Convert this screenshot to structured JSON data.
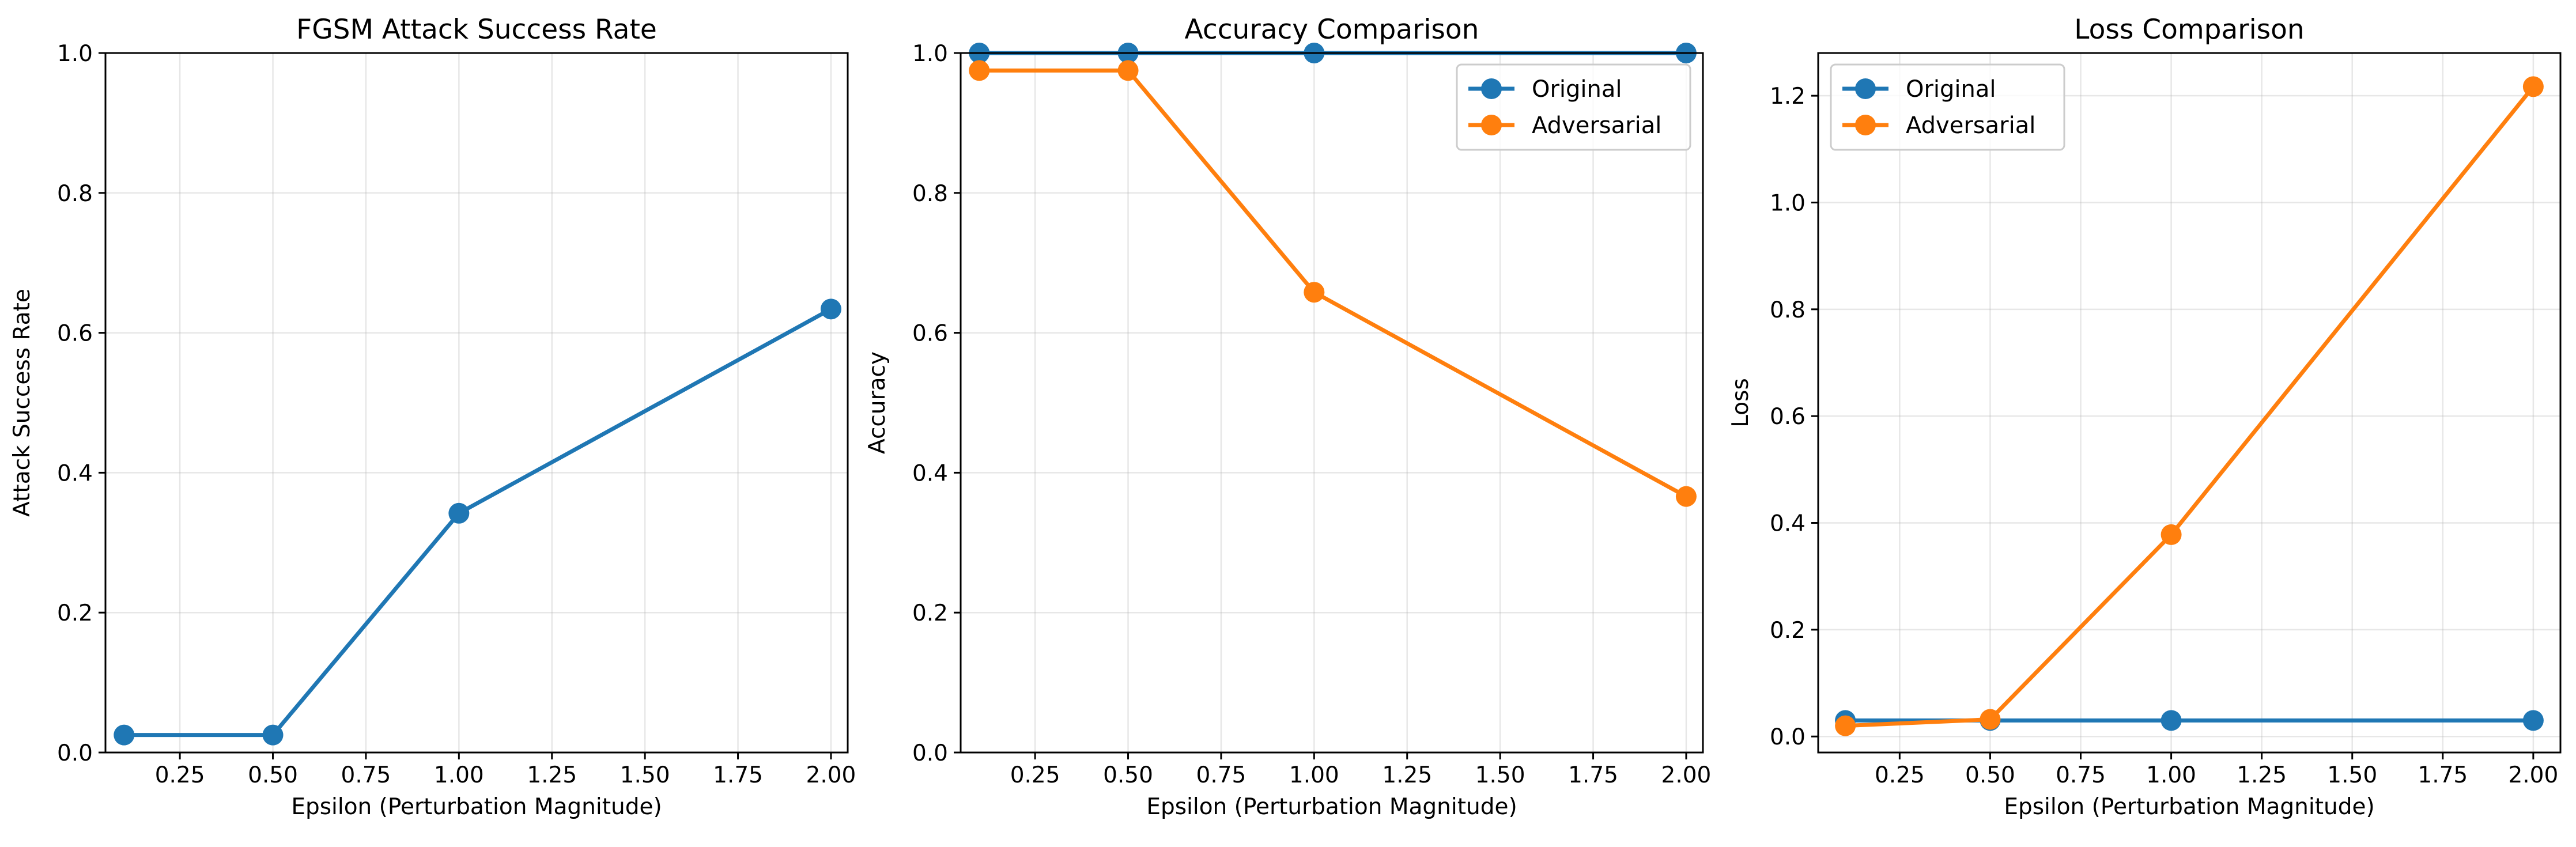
{
  "colors": {
    "original": "#1f77b4",
    "adversarial": "#ff7f0e"
  },
  "chart_data": [
    {
      "type": "line",
      "title": "FGSM Attack Success Rate",
      "xlabel": "Epsilon (Perturbation Magnitude)",
      "ylabel": "Attack Success Rate",
      "xlim": [
        0.05,
        2.045
      ],
      "ylim": [
        0.0,
        1.0
      ],
      "xticks": [
        "0.25",
        "0.50",
        "0.75",
        "1.00",
        "1.25",
        "1.50",
        "1.75",
        "2.00"
      ],
      "yticks": [
        "0.0",
        "0.2",
        "0.4",
        "0.6",
        "0.8",
        "1.0"
      ],
      "grid": true,
      "legend": "none",
      "x": [
        0.1,
        0.5,
        1.0,
        2.0
      ],
      "series": [
        {
          "values": [
            0.025,
            0.025,
            0.342,
            0.634
          ],
          "color": "#1f77b4"
        }
      ]
    },
    {
      "type": "line",
      "title": "Accuracy Comparison",
      "xlabel": "Epsilon (Perturbation Magnitude)",
      "ylabel": "Accuracy",
      "xlim": [
        0.05,
        2.045
      ],
      "ylim": [
        0.0,
        1.0
      ],
      "xticks": [
        "0.25",
        "0.50",
        "0.75",
        "1.00",
        "1.25",
        "1.50",
        "1.75",
        "2.00"
      ],
      "yticks": [
        "0.0",
        "0.2",
        "0.4",
        "0.6",
        "0.8",
        "1.0"
      ],
      "grid": true,
      "legend": "top-right",
      "x": [
        0.1,
        0.5,
        1.0,
        2.0
      ],
      "series": [
        {
          "name": "Original",
          "values": [
            1.0,
            1.0,
            1.0,
            1.0
          ],
          "color": "#1f77b4"
        },
        {
          "name": "Adversarial",
          "values": [
            0.975,
            0.975,
            0.658,
            0.366
          ],
          "color": "#ff7f0e"
        }
      ]
    },
    {
      "type": "line",
      "title": "Loss Comparison",
      "xlabel": "Epsilon (Perturbation Magnitude)",
      "ylabel": "Loss",
      "xlim": [
        0.025,
        2.075
      ],
      "ylim": [
        -0.03,
        1.28
      ],
      "xticks": [
        "0.25",
        "0.50",
        "0.75",
        "1.00",
        "1.25",
        "1.50",
        "1.75",
        "2.00"
      ],
      "yticks": [
        "0.0",
        "0.2",
        "0.4",
        "0.6",
        "0.8",
        "1.0",
        "1.2"
      ],
      "grid": true,
      "legend": "top-left",
      "x": [
        0.1,
        0.5,
        1.0,
        2.0
      ],
      "series": [
        {
          "name": "Original",
          "values": [
            0.03,
            0.03,
            0.03,
            0.03
          ],
          "color": "#1f77b4"
        },
        {
          "name": "Adversarial",
          "values": [
            0.02,
            0.032,
            0.378,
            1.217
          ],
          "color": "#ff7f0e"
        }
      ]
    }
  ]
}
